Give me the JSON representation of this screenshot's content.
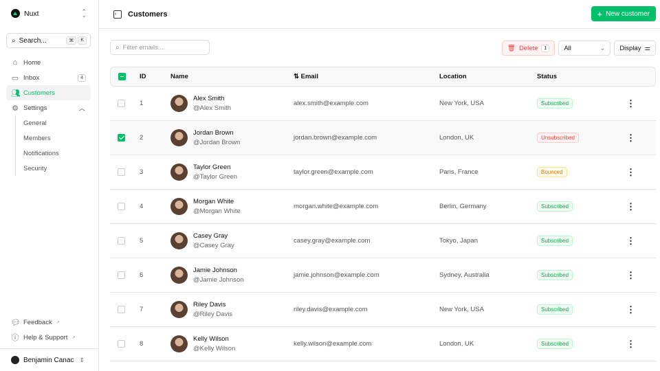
{
  "sidebar": {
    "brand": "Nuxt",
    "search_label": "Search...",
    "kbd": [
      "⌘",
      "K"
    ],
    "items": [
      {
        "label": "Home",
        "icon": "home-icon"
      },
      {
        "label": "Inbox",
        "icon": "inbox-icon",
        "badge": "4"
      },
      {
        "label": "Customers",
        "icon": "users-icon"
      },
      {
        "label": "Settings",
        "icon": "gear-icon"
      }
    ],
    "settings_sub": [
      "General",
      "Members",
      "Notifications",
      "Security"
    ],
    "footer": [
      "Feedback",
      "Help & Support"
    ],
    "user": "Benjamin Canac"
  },
  "header": {
    "title": "Customers",
    "new_button": "New customer"
  },
  "toolbar": {
    "filter_placeholder": "Filter emails...",
    "delete_label": "Delete",
    "delete_count": "1",
    "status_select": "All",
    "display_label": "Display"
  },
  "table": {
    "columns": [
      "ID",
      "Name",
      "Email",
      "Location",
      "Status"
    ],
    "rows": [
      {
        "id": "1",
        "name": "Alex Smith",
        "handle": "@Alex Smith",
        "email": "alex.smith@example.com",
        "location": "New York, USA",
        "status": "Subscribed",
        "selected": false
      },
      {
        "id": "2",
        "name": "Jordan Brown",
        "handle": "@Jordan Brown",
        "email": "jordan.brown@example.com",
        "location": "London, UK",
        "status": "Unsubscribed",
        "selected": true
      },
      {
        "id": "3",
        "name": "Taylor Green",
        "handle": "@Taylor Green",
        "email": "taylor.green@example.com",
        "location": "Paris, France",
        "status": "Bounced",
        "selected": false
      },
      {
        "id": "4",
        "name": "Morgan White",
        "handle": "@Morgan White",
        "email": "morgan.white@example.com",
        "location": "Berlin, Germany",
        "status": "Subscribed",
        "selected": false
      },
      {
        "id": "5",
        "name": "Casey Gray",
        "handle": "@Casey Gray",
        "email": "casey.gray@example.com",
        "location": "Tokyo, Japan",
        "status": "Subscribed",
        "selected": false
      },
      {
        "id": "6",
        "name": "Jamie Johnson",
        "handle": "@Jamie Johnson",
        "email": "jamie.johnson@example.com",
        "location": "Sydney, Australia",
        "status": "Subscribed",
        "selected": false
      },
      {
        "id": "7",
        "name": "Riley Davis",
        "handle": "@Riley Davis",
        "email": "riley.davis@example.com",
        "location": "New York, USA",
        "status": "Subscribed",
        "selected": false
      },
      {
        "id": "8",
        "name": "Kelly Wilson",
        "handle": "@Kelly Wilson",
        "email": "kelly.wilson@example.com",
        "location": "London, UK",
        "status": "Subscribed",
        "selected": false
      }
    ]
  },
  "colors": {
    "accent": "#00c16a",
    "danger": "#ef4444",
    "warning": "#d97706"
  }
}
